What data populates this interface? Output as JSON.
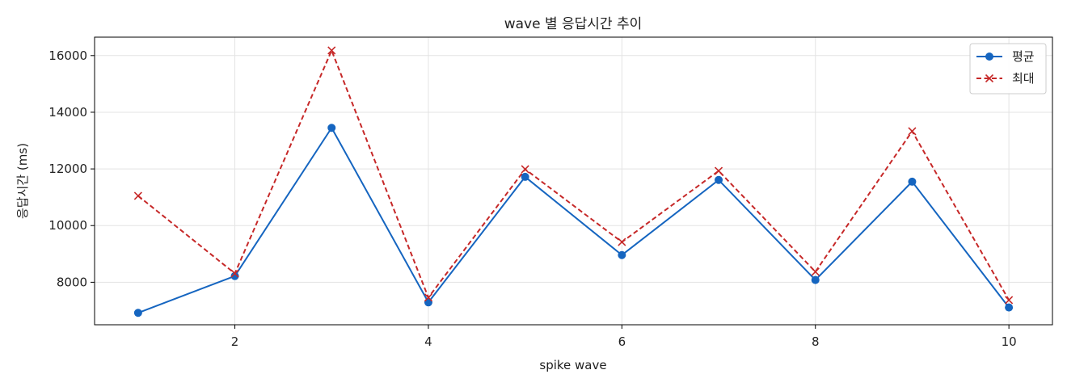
{
  "chart_data": {
    "type": "line",
    "title": "wave 별 응답시간 추이",
    "xlabel": "spike wave",
    "ylabel": "응답시간 (ms)",
    "x": [
      1,
      2,
      3,
      4,
      5,
      6,
      7,
      8,
      9,
      10
    ],
    "xlim": [
      0.55,
      10.45
    ],
    "ylim": [
      6500,
      16650
    ],
    "xticks": [
      2,
      4,
      6,
      8,
      10
    ],
    "yticks": [
      8000,
      10000,
      12000,
      14000,
      16000
    ],
    "grid": true,
    "legend_position": "top-right",
    "series": [
      {
        "name": "평균",
        "color": "#1565c0",
        "line_style": "solid",
        "marker": "circle",
        "values": [
          6920,
          8220,
          13450,
          7290,
          11720,
          8960,
          11610,
          8080,
          11550,
          7110
        ]
      },
      {
        "name": "최대",
        "color": "#c62828",
        "line_style": "dashed",
        "marker": "x",
        "values": [
          11050,
          8310,
          16180,
          7460,
          11990,
          9420,
          11930,
          8370,
          13330,
          7370
        ]
      }
    ]
  }
}
